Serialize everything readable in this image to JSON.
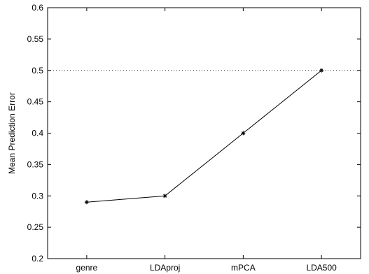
{
  "chart_data": {
    "type": "line",
    "categories": [
      "genre",
      "LDAproj",
      "mPCA",
      "LDA500"
    ],
    "series": [
      {
        "values": [
          0.29,
          0.3,
          0.4,
          0.5
        ],
        "color": "#000000",
        "marker": "asterisk"
      }
    ],
    "xlabel": "",
    "ylabel": "Mean Prediction Error",
    "ylim": [
      0.2,
      0.6
    ],
    "yticks": [
      "0.2",
      "0.25",
      "0.3",
      "0.35",
      "0.4",
      "0.45",
      "0.5",
      "0.55",
      "0.6"
    ],
    "reference_line": {
      "y": 0.5,
      "style": "dotted"
    },
    "grid": false,
    "legend": "none"
  }
}
